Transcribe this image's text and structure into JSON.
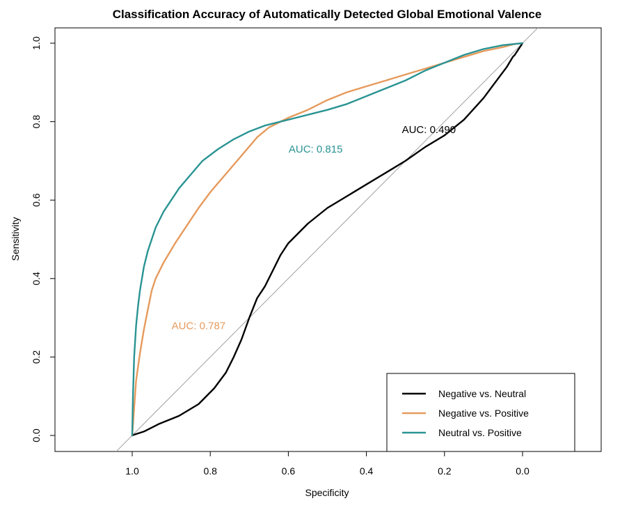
{
  "chart_data": {
    "type": "line",
    "title": "Classification Accuracy of Automatically Detected Global Emotional Valence",
    "xlabel": "Specificity",
    "ylabel": "Sensitivity",
    "xlim": [
      1.2,
      -0.2
    ],
    "ylim": [
      -0.04,
      1.04
    ],
    "x_ticks": [
      1.0,
      0.8,
      0.6,
      0.4,
      0.2,
      0.0
    ],
    "x_tick_labels": [
      "1.0",
      "0.8",
      "0.6",
      "0.4",
      "0.2",
      "0.0"
    ],
    "y_ticks": [
      0.0,
      0.2,
      0.4,
      0.6,
      0.8,
      1.0
    ],
    "y_tick_labels": [
      "0.0",
      "0.2",
      "0.4",
      "0.6",
      "0.8",
      "1.0"
    ],
    "reference_line": {
      "from": [
        1.0,
        0.0
      ],
      "to": [
        0.0,
        1.0
      ],
      "color": "#a0a0a0"
    },
    "grid": false,
    "legend_position": "bottom-right",
    "series": [
      {
        "name": "Negative vs. Neutral",
        "color": "#000000",
        "x": [
          1.0,
          0.995,
          0.97,
          0.93,
          0.88,
          0.83,
          0.79,
          0.76,
          0.74,
          0.72,
          0.7,
          0.68,
          0.66,
          0.64,
          0.62,
          0.6,
          0.58,
          0.55,
          0.5,
          0.45,
          0.4,
          0.35,
          0.3,
          0.25,
          0.2,
          0.15,
          0.1,
          0.07,
          0.04,
          0.025,
          0.02,
          0.01,
          0.0
        ],
        "y": [
          0.0,
          0.002,
          0.01,
          0.03,
          0.05,
          0.08,
          0.12,
          0.16,
          0.2,
          0.245,
          0.3,
          0.35,
          0.38,
          0.42,
          0.46,
          0.49,
          0.51,
          0.54,
          0.58,
          0.61,
          0.64,
          0.67,
          0.7,
          0.735,
          0.765,
          0.805,
          0.86,
          0.9,
          0.94,
          0.965,
          0.97,
          0.985,
          1.0
        ]
      },
      {
        "name": "Negative vs. Positive",
        "color": "#e69a5c",
        "x": [
          1.0,
          0.995,
          0.99,
          0.98,
          0.97,
          0.96,
          0.95,
          0.94,
          0.92,
          0.89,
          0.86,
          0.83,
          0.8,
          0.77,
          0.74,
          0.71,
          0.68,
          0.65,
          0.6,
          0.55,
          0.5,
          0.45,
          0.4,
          0.35,
          0.3,
          0.25,
          0.2,
          0.15,
          0.1,
          0.05,
          0.02,
          0.0
        ],
        "y": [
          0.0,
          0.07,
          0.14,
          0.21,
          0.27,
          0.32,
          0.37,
          0.4,
          0.44,
          0.49,
          0.535,
          0.58,
          0.62,
          0.655,
          0.69,
          0.725,
          0.76,
          0.785,
          0.81,
          0.83,
          0.855,
          0.875,
          0.89,
          0.905,
          0.92,
          0.935,
          0.95,
          0.965,
          0.98,
          0.99,
          0.998,
          1.0
        ]
      },
      {
        "name": "Neutral vs. Positive",
        "color": "#2a9393",
        "x": [
          1.0,
          0.998,
          0.995,
          0.99,
          0.985,
          0.98,
          0.97,
          0.96,
          0.94,
          0.92,
          0.9,
          0.88,
          0.85,
          0.82,
          0.78,
          0.74,
          0.7,
          0.66,
          0.62,
          0.58,
          0.54,
          0.5,
          0.45,
          0.4,
          0.35,
          0.3,
          0.25,
          0.2,
          0.15,
          0.1,
          0.05,
          0.0
        ],
        "y": [
          0.0,
          0.1,
          0.2,
          0.28,
          0.33,
          0.37,
          0.43,
          0.47,
          0.53,
          0.57,
          0.6,
          0.63,
          0.665,
          0.7,
          0.73,
          0.755,
          0.775,
          0.79,
          0.8,
          0.81,
          0.82,
          0.83,
          0.845,
          0.865,
          0.885,
          0.905,
          0.93,
          0.95,
          0.97,
          0.985,
          0.995,
          1.0
        ]
      }
    ],
    "annotations": [
      {
        "text": "AUC: 0.490",
        "x": 0.24,
        "y": 0.78,
        "color": "#000000"
      },
      {
        "text": "AUC: 0.787",
        "x": 0.83,
        "y": 0.28,
        "color": "#e69a5c"
      },
      {
        "text": "AUC: 0.815",
        "x": 0.53,
        "y": 0.73,
        "color": "#2a9393"
      }
    ]
  }
}
